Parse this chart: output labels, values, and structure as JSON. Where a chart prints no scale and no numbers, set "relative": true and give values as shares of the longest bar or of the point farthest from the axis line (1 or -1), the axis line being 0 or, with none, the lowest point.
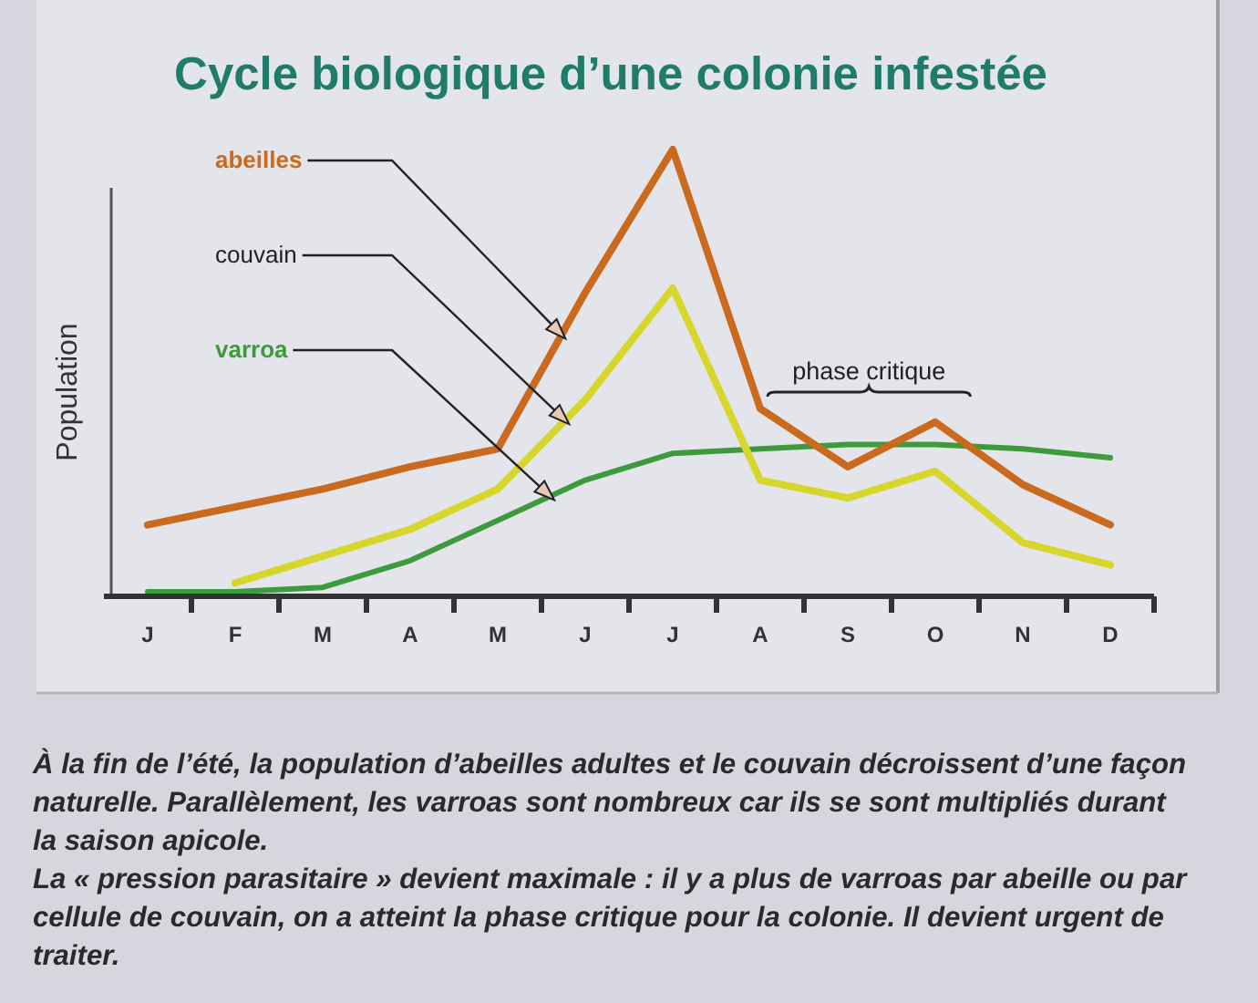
{
  "chart_data": {
    "type": "line",
    "title": "Cycle biologique d’une colonie infestée",
    "ylabel": "Population",
    "relative": true,
    "categories": [
      "J",
      "F",
      "M",
      "A",
      "M",
      "J",
      "J",
      "A",
      "S",
      "O",
      "N",
      "D"
    ],
    "series": [
      {
        "name": "abeilles",
        "color": "#c96a1f",
        "values": [
          0.16,
          0.2,
          0.24,
          0.29,
          0.33,
          0.68,
          1,
          0.42,
          0.29,
          0.39,
          0.25,
          0.16
        ]
      },
      {
        "name": "couvain",
        "color": "#d6d62c",
        "values": [
          null,
          0.03,
          0.09,
          0.15,
          0.24,
          0.44,
          0.69,
          0.26,
          0.22,
          0.28,
          0.12,
          0.07
        ]
      },
      {
        "name": "varroa",
        "color": "#3d9a3d",
        "values": [
          0.01,
          0.01,
          0.02,
          0.08,
          0.17,
          0.26,
          0.32,
          0.33,
          0.34,
          0.34,
          0.33,
          0.31
        ]
      }
    ],
    "annotations": [
      "phase critique",
      "À la fin de l’été, la population d’abeilles adultes et le couvain décroissent d’une façon naturelle. Parallèlement, les varroas sont nombreux car ils se sont multipliés durant la saison apicole.",
      "La « pression parasitaire » devient maximale : il y a plus de varroas par abeille ou par cellule de couvain, on a atteint la phase critique pour la colonie. Il devient urgent de traiter."
    ]
  }
}
